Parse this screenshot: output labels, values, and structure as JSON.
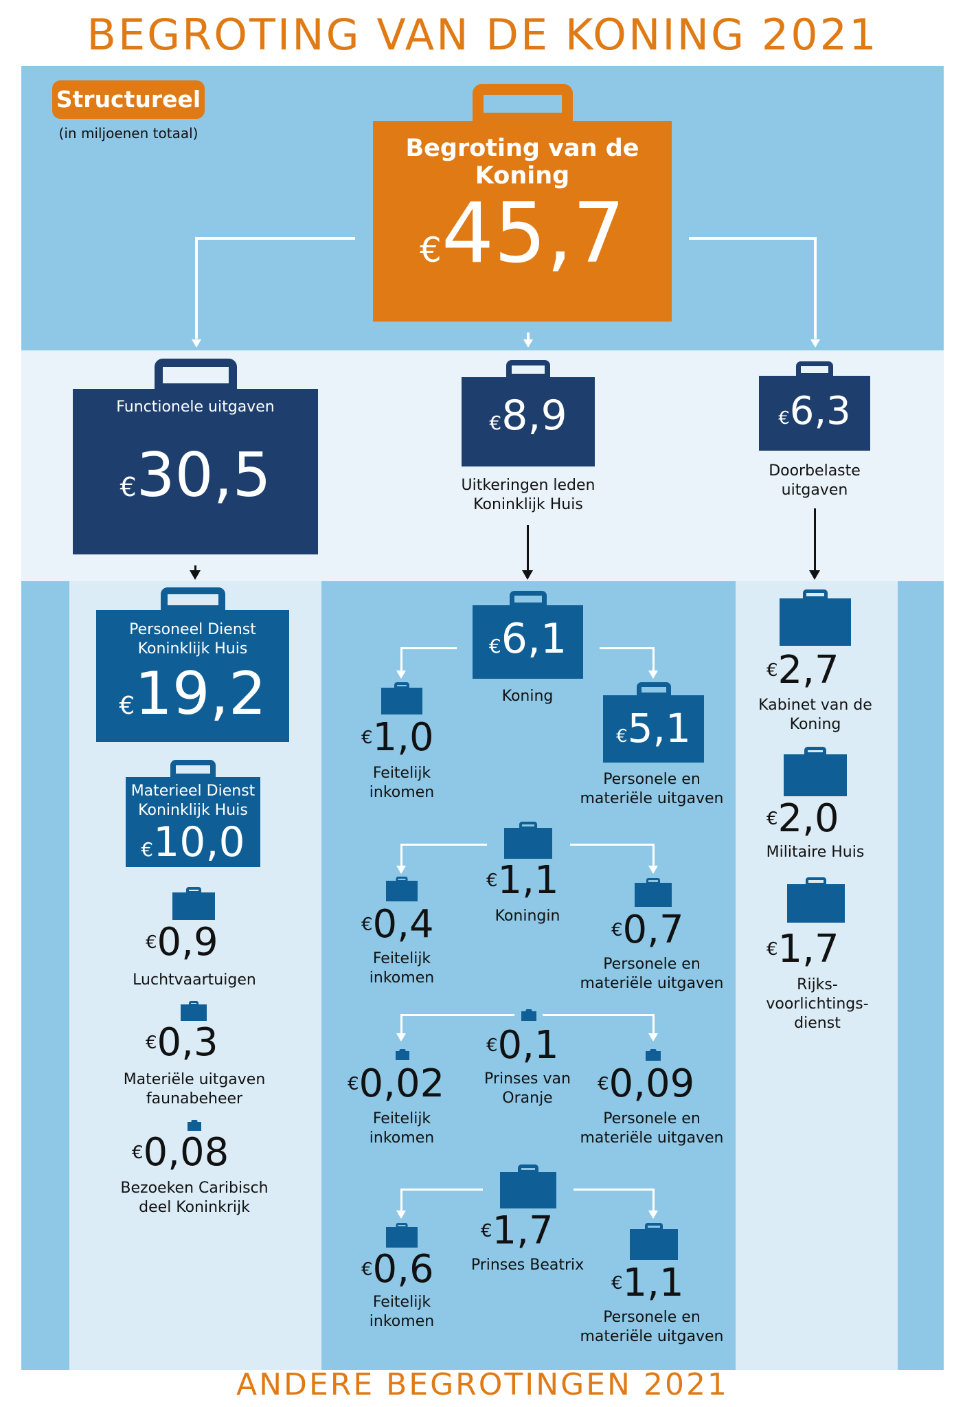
{
  "title": "BEGROTING VAN DE KONING 2021",
  "footer_title": "ANDERE BEGROTINGEN 2021",
  "badge": {
    "label": "Structureel",
    "sub": "(in miljoenen totaal)"
  },
  "currency": "€",
  "top": {
    "label": "Begroting van de Koning",
    "amount": "45,7"
  },
  "functionele": {
    "label": "Functionele uitgaven",
    "amount": "30,5",
    "items": [
      {
        "label": "Personeel Dienst Koninklijk Huis",
        "amount": "19,2"
      },
      {
        "label": "Materieel Dienst Koninklijk Huis",
        "amount": "10,0"
      },
      {
        "label": "Luchtvaartuigen",
        "amount": "0,9"
      },
      {
        "label": "Materiële uitgaven faunabeheer",
        "amount": "0,3"
      },
      {
        "label": "Bezoeken Caribisch deel Koninkrijk",
        "amount": "0,08"
      }
    ]
  },
  "uitkeringen": {
    "label": "Uitkeringen leden Koninklijk Huis",
    "amount": "8,9",
    "groups": [
      {
        "label": "Koning",
        "amount": "6,1",
        "left": {
          "label": "Feitelijk inkomen",
          "amount": "1,0"
        },
        "right": {
          "label": "Personele en materiële uitgaven",
          "amount": "5,1"
        }
      },
      {
        "label": "Koningin",
        "amount": "1,1",
        "left": {
          "label": "Feitelijk inkomen",
          "amount": "0,4"
        },
        "right": {
          "label": "Personele en materiële uitgaven",
          "amount": "0,7"
        }
      },
      {
        "label": "Prinses van Oranje",
        "amount": "0,1",
        "left": {
          "label": "Feitelijk inkomen",
          "amount": "0,02"
        },
        "right": {
          "label": "Personele en materiële uitgaven",
          "amount": "0,09"
        }
      },
      {
        "label": "Prinses Beatrix",
        "amount": "1,7",
        "left": {
          "label": "Feitelijk inkomen",
          "amount": "0,6"
        },
        "right": {
          "label": "Personele en materiële uitgaven",
          "amount": "1,1"
        }
      }
    ]
  },
  "doorbelaste": {
    "label": "Doorbelaste uitgaven",
    "amount": "6,3",
    "items": [
      {
        "label": "Kabinet van de Koning",
        "amount": "2,7"
      },
      {
        "label": "Militaire Huis",
        "amount": "2,0"
      },
      {
        "label": "Rijks-voorlichtings-dienst",
        "amount": "1,7"
      }
    ]
  },
  "colors": {
    "orange": "#e07a14",
    "navy": "#1e3f6e",
    "blue": "#0f5f96",
    "light_blue": "#8ec8e6",
    "pale_blue": "#dbecf6"
  }
}
